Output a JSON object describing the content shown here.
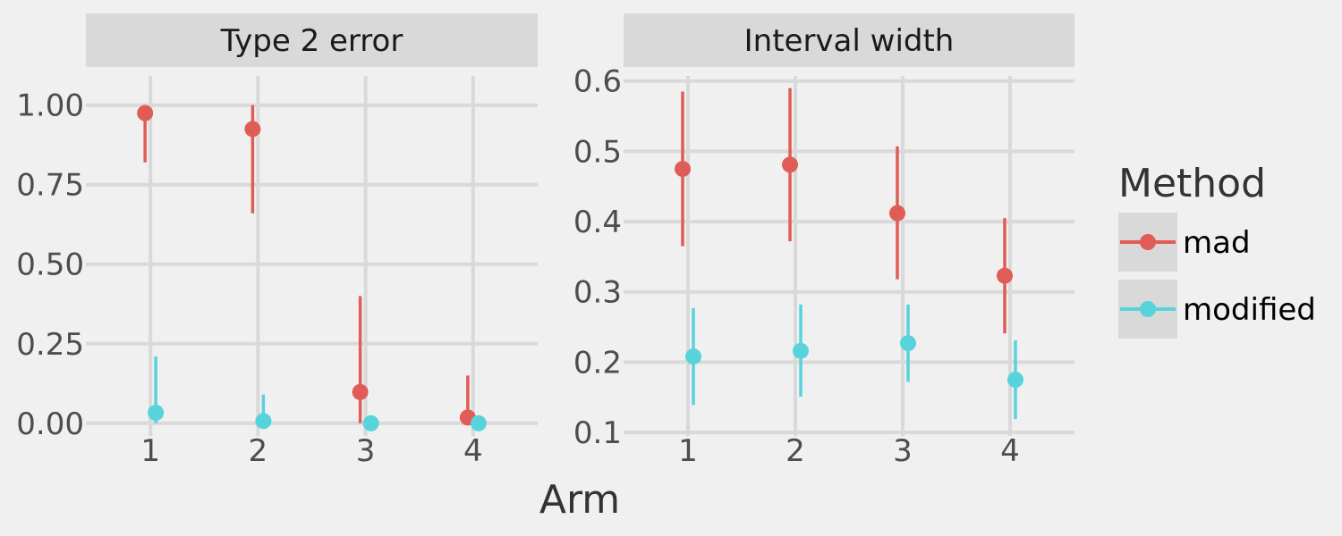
{
  "chart_data": {
    "type": "scatter",
    "xlabel": "Arm",
    "categories": [
      "1",
      "2",
      "3",
      "4"
    ],
    "legend": {
      "title": "Method",
      "placement": "right",
      "entries": [
        {
          "label": "mad",
          "color": "#e05d57"
        },
        {
          "label": "modified",
          "color": "#57d3db"
        }
      ]
    },
    "colors": {
      "mad": "#e05d57",
      "modified": "#57d3db",
      "panel_bg": "#f0f0f0",
      "strip_bg": "#d9d9d9",
      "grid": "#d9d9d9"
    },
    "grid": true,
    "facets": [
      {
        "strip": "Type 2 error",
        "ylim": [
          -0.04,
          1.12
        ],
        "yticks": [
          0.0,
          0.25,
          0.5,
          0.75,
          1.0
        ],
        "ytick_labels": [
          "0.00",
          "0.25",
          "0.50",
          "0.75",
          "1.00"
        ],
        "series": [
          {
            "name": "mad",
            "points": [
              {
                "x": 1,
                "y": 0.975,
                "low": 0.82,
                "high": 1.0
              },
              {
                "x": 2,
                "y": 0.925,
                "low": 0.66,
                "high": 1.0
              },
              {
                "x": 3,
                "y": 0.098,
                "low": 0.0,
                "high": 0.4
              },
              {
                "x": 4,
                "y": 0.018,
                "low": 0.0,
                "high": 0.15
              }
            ]
          },
          {
            "name": "modified",
            "points": [
              {
                "x": 1,
                "y": 0.033,
                "low": 0.0,
                "high": 0.21
              },
              {
                "x": 2,
                "y": 0.007,
                "low": 0.0,
                "high": 0.09
              },
              {
                "x": 3,
                "y": 0.0,
                "low": 0.0,
                "high": 0.0
              },
              {
                "x": 4,
                "y": 0.0,
                "low": 0.0,
                "high": 0.0
              }
            ]
          }
        ]
      },
      {
        "strip": "Interval width",
        "ylim": [
          0.095,
          0.62
        ],
        "yticks": [
          0.1,
          0.2,
          0.3,
          0.4,
          0.5,
          0.6
        ],
        "ytick_labels": [
          "0.1",
          "0.2",
          "0.3",
          "0.4",
          "0.5",
          "0.6"
        ],
        "series": [
          {
            "name": "mad",
            "points": [
              {
                "x": 1,
                "y": 0.475,
                "low": 0.365,
                "high": 0.585
              },
              {
                "x": 2,
                "y": 0.481,
                "low": 0.372,
                "high": 0.59
              },
              {
                "x": 3,
                "y": 0.412,
                "low": 0.318,
                "high": 0.507
              },
              {
                "x": 4,
                "y": 0.323,
                "low": 0.241,
                "high": 0.405
              }
            ]
          },
          {
            "name": "modified",
            "points": [
              {
                "x": 1,
                "y": 0.208,
                "low": 0.139,
                "high": 0.277
              },
              {
                "x": 2,
                "y": 0.216,
                "low": 0.151,
                "high": 0.282
              },
              {
                "x": 3,
                "y": 0.227,
                "low": 0.172,
                "high": 0.282
              },
              {
                "x": 4,
                "y": 0.175,
                "low": 0.119,
                "high": 0.231
              }
            ]
          }
        ]
      }
    ]
  }
}
